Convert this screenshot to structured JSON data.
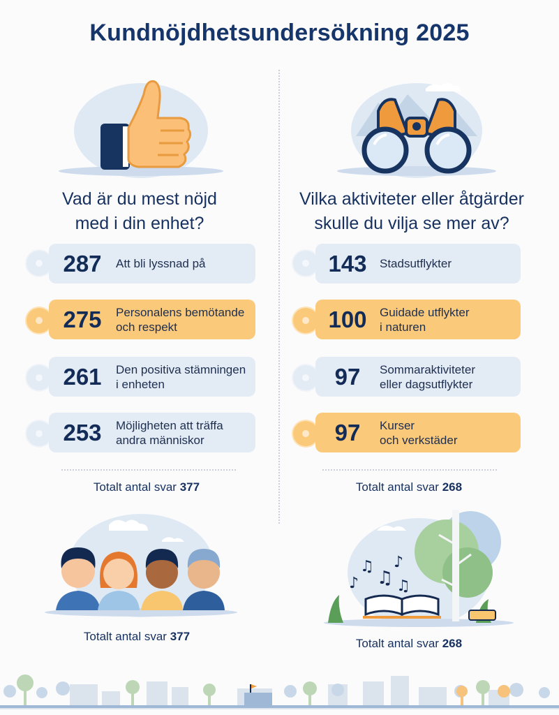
{
  "title": "Kundnöjdhetsundersökning 2025",
  "left": {
    "question": [
      "Vad är du mest nöjd",
      "med i din enhet?"
    ],
    "items": [
      {
        "value": "287",
        "label": [
          "Att bli lyssnad på"
        ],
        "color": "blue"
      },
      {
        "value": "275",
        "label": [
          "Personalens bemötande",
          "och respekt"
        ],
        "color": "orange"
      },
      {
        "value": "261",
        "label": [
          "Den positiva stämningen",
          "i enheten"
        ],
        "color": "blue"
      },
      {
        "value": "253",
        "label": [
          "Möjligheten att träffa",
          "andra människor"
        ],
        "color": "blue"
      }
    ],
    "total_label": "Totalt antal svar",
    "total_value": "377",
    "bottom_total_label": "Totalt antal svar",
    "bottom_total_value": "377"
  },
  "right": {
    "question": [
      "Vilka aktiviteter eller åtgärder",
      "skulle du vilja se mer av?"
    ],
    "items": [
      {
        "value": "143",
        "label": [
          "Stadsutflykter"
        ],
        "color": "blue"
      },
      {
        "value": "100",
        "label": [
          "Guidade utflykter",
          "i naturen"
        ],
        "color": "orange"
      },
      {
        "value": "97",
        "label": [
          "Sommaraktiviteter",
          "eller dagsutflykter"
        ],
        "color": "blue"
      },
      {
        "value": "97",
        "label": [
          "Kurser",
          "och verkstäder"
        ],
        "color": "orange"
      }
    ],
    "total_label": "Totalt antal svar",
    "total_value": "268",
    "bottom_total_label": "Totalt antal svar",
    "bottom_total_value": "268"
  },
  "colors": {
    "navy": "#16305f",
    "row_blue": "#e3ebf5",
    "row_orange": "#fbc97a",
    "accent_orange": "#f5a25a"
  },
  "icons": [
    "thumbs-up-icon",
    "binoculars-icon",
    "group-of-people-icon",
    "tree-book-music-icon",
    "city-skyline-icon"
  ]
}
